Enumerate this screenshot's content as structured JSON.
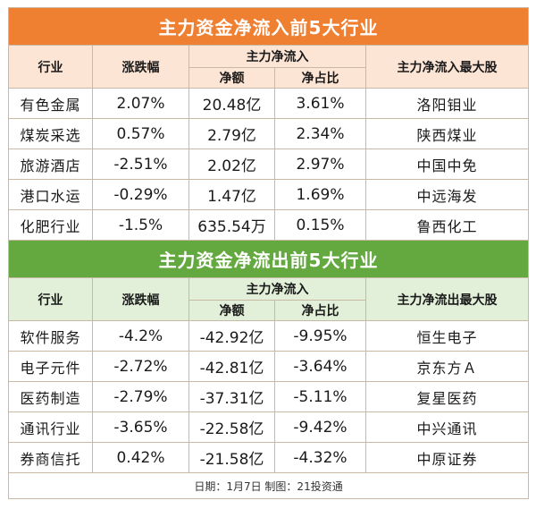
{
  "inflow": {
    "title": "主力资金净流入前5大行业",
    "headers": {
      "industry": "行业",
      "change": "涨跌幅",
      "main_flow": "主力净流入",
      "net_amount": "净额",
      "net_ratio": "净占比",
      "top_stock": "主力净流入最大股"
    },
    "rows": [
      {
        "industry": "有色金属",
        "change": "2.07%",
        "amount": "20.48亿",
        "ratio": "3.61%",
        "stock": "洛阳钼业"
      },
      {
        "industry": "煤炭采选",
        "change": "0.57%",
        "amount": "2.79亿",
        "ratio": "2.34%",
        "stock": "陕西煤业"
      },
      {
        "industry": "旅游酒店",
        "change": "-2.51%",
        "amount": "2.02亿",
        "ratio": "2.97%",
        "stock": "中国中免"
      },
      {
        "industry": "港口水运",
        "change": "-0.29%",
        "amount": "1.47亿",
        "ratio": "1.69%",
        "stock": "中远海发"
      },
      {
        "industry": "化肥行业",
        "change": "-1.5%",
        "amount": "635.54万",
        "ratio": "0.15%",
        "stock": "鲁西化工"
      }
    ]
  },
  "outflow": {
    "title": "主力资金净流出前5大行业",
    "headers": {
      "industry": "行业",
      "change": "涨跌幅",
      "main_flow": "主力净流入",
      "net_amount": "净额",
      "net_ratio": "净占比",
      "top_stock": "主力净流出最大股"
    },
    "rows": [
      {
        "industry": "软件服务",
        "change": "-4.2%",
        "amount": "-42.92亿",
        "ratio": "-9.95%",
        "stock": "恒生电子"
      },
      {
        "industry": "电子元件",
        "change": "-2.72%",
        "amount": "-42.81亿",
        "ratio": "-3.64%",
        "stock": "京东方Ａ"
      },
      {
        "industry": "医药制造",
        "change": "-2.79%",
        "amount": "-37.31亿",
        "ratio": "-5.11%",
        "stock": "复星医药"
      },
      {
        "industry": "通讯行业",
        "change": "-3.65%",
        "amount": "-22.58亿",
        "ratio": "-9.42%",
        "stock": "中兴通讯"
      },
      {
        "industry": "券商信托",
        "change": "0.42%",
        "amount": "-21.58亿",
        "ratio": "-4.32%",
        "stock": "中原证券"
      }
    ]
  },
  "footer": "日期：1月7日 制图：21投资通",
  "colors": {
    "inflow_band": "#ef7f31",
    "inflow_header": "#fde5d6",
    "outflow_band": "#64a93f",
    "outflow_header": "#e2efd9"
  }
}
